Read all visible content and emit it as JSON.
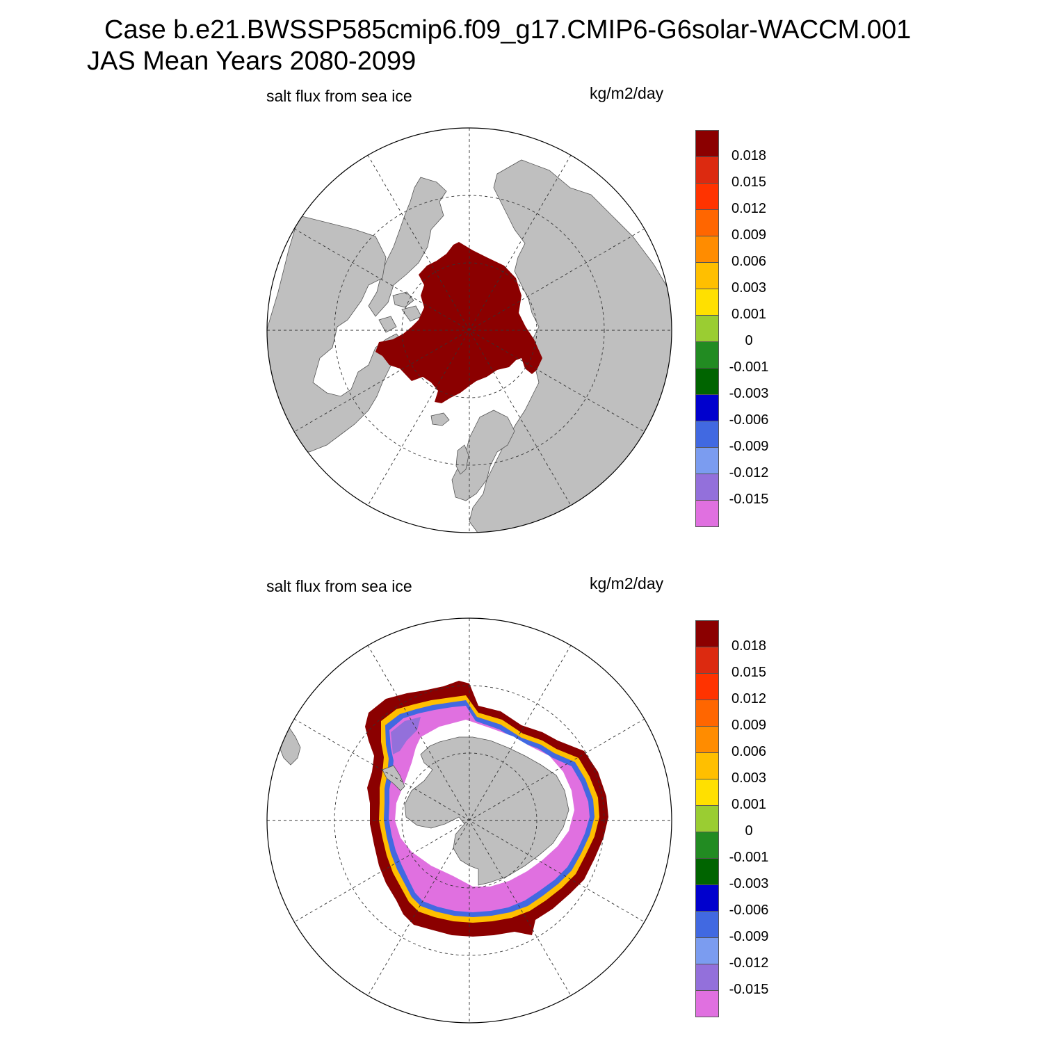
{
  "title": {
    "line1": "Case b.e21.BWSSP585cmip6.f09_g17.CMIP6-G6solar-WACCM.001",
    "line2": "JAS Mean   Years 2080-2099"
  },
  "panels": [
    {
      "variable": "salt flux from sea ice",
      "units": "kg/m2/day",
      "hemisphere": "north"
    },
    {
      "variable": "salt flux from sea ice",
      "units": "kg/m2/day",
      "hemisphere": "south"
    }
  ],
  "colorbar": {
    "labels": [
      "0.018",
      "0.015",
      "0.012",
      "0.009",
      "0.006",
      "0.003",
      "0.001",
      "0",
      "-0.001",
      "-0.003",
      "-0.006",
      "-0.009",
      "-0.012",
      "-0.015"
    ],
    "colors": [
      "#8b0000",
      "#dc2a10",
      "#ff3300",
      "#ff6600",
      "#ff8c00",
      "#ffbf00",
      "#ffe000",
      "#9acd32",
      "#228b22",
      "#006400",
      "#0000cd",
      "#4169e1",
      "#7b9cf0",
      "#9370db",
      "#e070e0"
    ]
  },
  "colors": {
    "land": "#bfbfbf",
    "ocean": "#ffffff",
    "grid": "#333333"
  }
}
